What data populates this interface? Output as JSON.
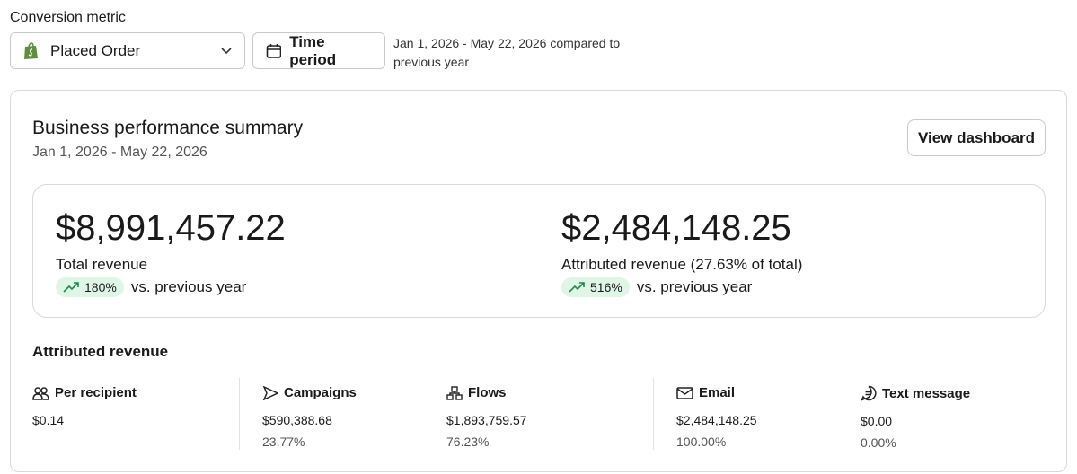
{
  "conversion_metric": {
    "label": "Conversion metric",
    "selected": "Placed Order"
  },
  "time_period": {
    "button": "Time period",
    "description": "Jan 1, 2026 - May 22, 2026 compared to previous year"
  },
  "summary": {
    "title": "Business performance summary",
    "date_range": "Jan 1, 2026 - May 22, 2026",
    "button": "View dashboard",
    "metrics": [
      {
        "value": "$8,991,457.22",
        "label": "Total revenue",
        "change": "180%",
        "comparison": "vs. previous year"
      },
      {
        "value": "$2,484,148.25",
        "label": "Attributed revenue (27.63% of total)",
        "change": "516%",
        "comparison": "vs. previous year"
      }
    ],
    "attributed": {
      "title": "Attributed revenue",
      "columns": [
        {
          "label": "Per recipient",
          "value": "$0.14"
        },
        {
          "label": "Campaigns",
          "value": "$590,388.68",
          "share": "23.77%"
        },
        {
          "label": "Flows",
          "value": "$1,893,759.57",
          "share": "76.23%"
        },
        {
          "label": "Email",
          "value": "$2,484,148.25",
          "share": "100.00%"
        },
        {
          "label": "Text message",
          "value": "$0.00",
          "share": "0.00%"
        }
      ]
    }
  }
}
